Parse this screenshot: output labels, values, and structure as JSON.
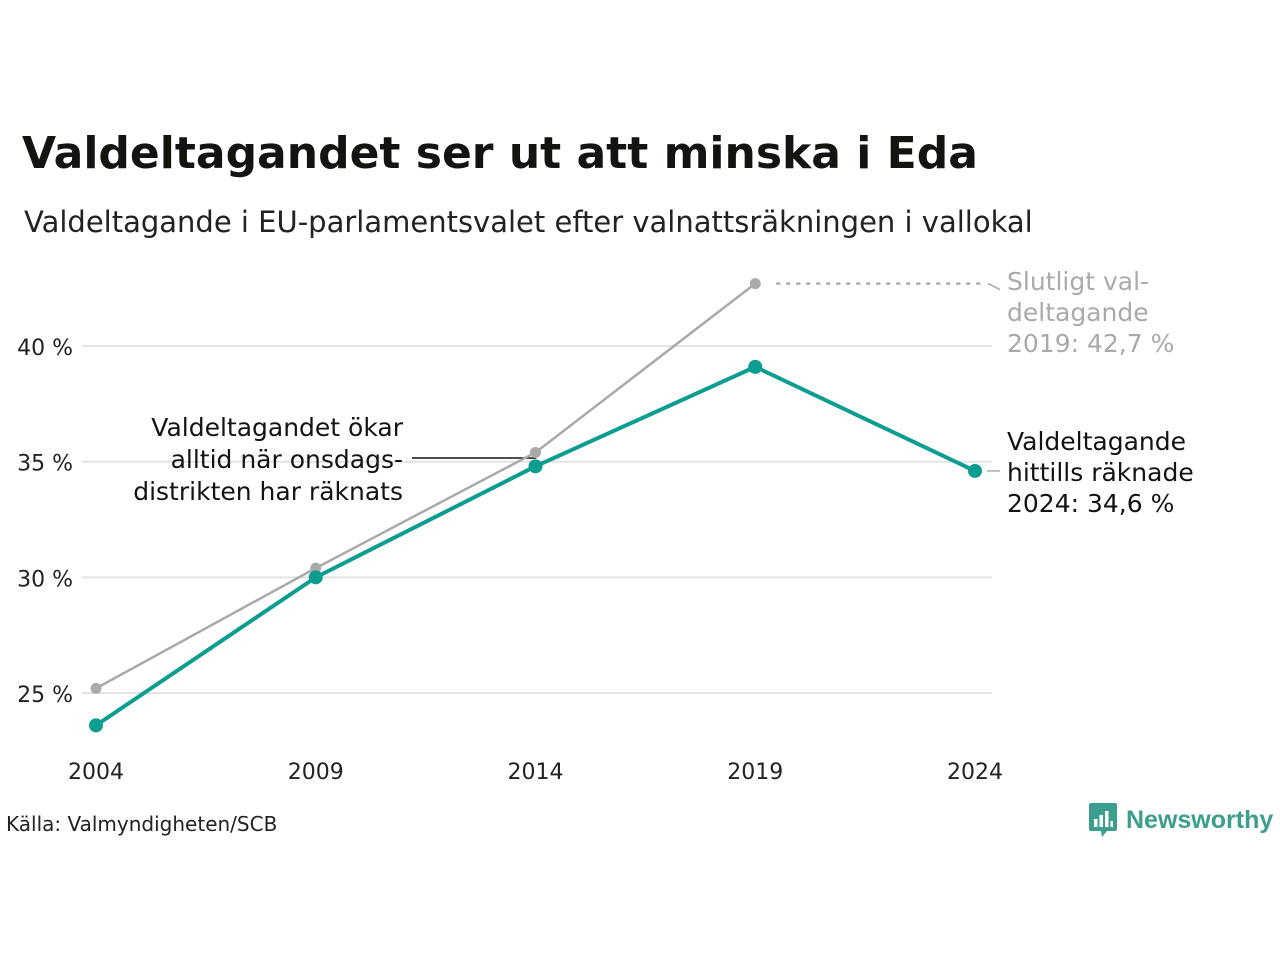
{
  "title": "Valdeltagandet ser ut att minska i Eda",
  "subtitle": "Valdeltagande i EU-parlamentsvalet efter valnattsräkningen i vallokal",
  "source": "Källa: Valmyndigheten/SCB",
  "brand": {
    "name": "Newsworthy",
    "icon": "newsworthy-logo-icon",
    "color": "#3c9e8f"
  },
  "colors": {
    "final": "#aaaaaa",
    "election_night": "#0b9d90",
    "grid": "#e3e3e3",
    "text": "#222222"
  },
  "chart_data": {
    "type": "line",
    "x": [
      2004,
      2009,
      2014,
      2019,
      2024
    ],
    "x_tick_labels": [
      "2004",
      "2009",
      "2014",
      "2019",
      "2024"
    ],
    "y_ticks": [
      25,
      30,
      35,
      40
    ],
    "y_tick_labels": [
      "25 %",
      "30 %",
      "35 %",
      "40 %"
    ],
    "ylim": [
      22.5,
      43.5
    ],
    "grid": true,
    "series": [
      {
        "key": "final",
        "values": [
          25.2,
          30.4,
          35.4,
          42.7,
          null
        ]
      },
      {
        "key": "election_night",
        "values": [
          23.6,
          30.0,
          34.8,
          39.1,
          34.6
        ]
      }
    ],
    "annotations": {
      "final_2019": [
        "Slutligt val-",
        "deltagande",
        "2019: 42,7 %"
      ],
      "current_2024": [
        "Valdeltagande",
        "hittills räknade",
        "2024: 34,6 %"
      ],
      "wednesday_note": [
        "Valdeltagandet ökar",
        "alltid när onsdags-",
        "distrikten har räknats"
      ]
    }
  }
}
